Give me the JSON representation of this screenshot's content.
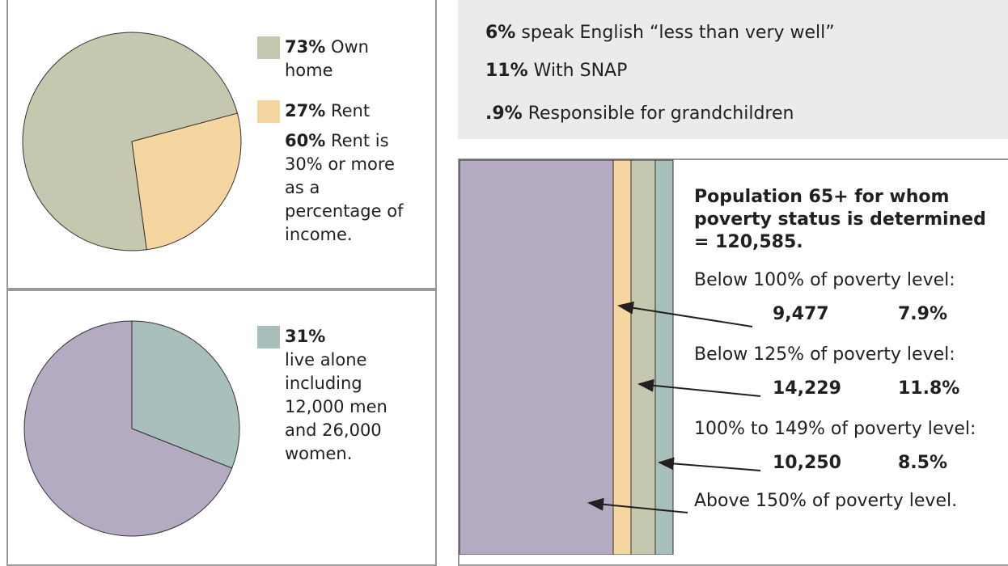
{
  "housing": {
    "slices": [
      {
        "value": 73,
        "label": "73%",
        "text": "Own home",
        "color": "#c5c8ae"
      },
      {
        "value": 27,
        "label": "27%",
        "text": "Rent",
        "color": "#f5d6a1"
      }
    ],
    "note": {
      "label": "60%",
      "text": "Rent is 30% or more as a percentage of income."
    }
  },
  "living": {
    "slices": [
      {
        "value": 31,
        "label": "31%",
        "text": "live alone including 12,000 men and 26,000 women.",
        "color": "#a8bfbb"
      },
      {
        "value": 69,
        "color": "#b4aac2"
      }
    ]
  },
  "stats": [
    {
      "label": "6%",
      "text": "speak English “less than very well”"
    },
    {
      "label": "11%",
      "text": "With SNAP"
    },
    {
      "label": ".9%",
      "text": "Responsible for grandchildren"
    }
  ],
  "poverty": {
    "title": "Population 65+ for whom poverty status is determined = 120,585.",
    "items": [
      {
        "text": "Below 100% of poverty level:",
        "count": "9,477",
        "percent": "7.9%"
      },
      {
        "text": "Below 125% of poverty level:",
        "count": "14,229",
        "percent": "11.8%"
      },
      {
        "text": "100% to 149% of poverty level:",
        "count": "10,250",
        "percent": "8.5%"
      },
      {
        "text": "Above 150% of poverty level."
      }
    ]
  }
}
